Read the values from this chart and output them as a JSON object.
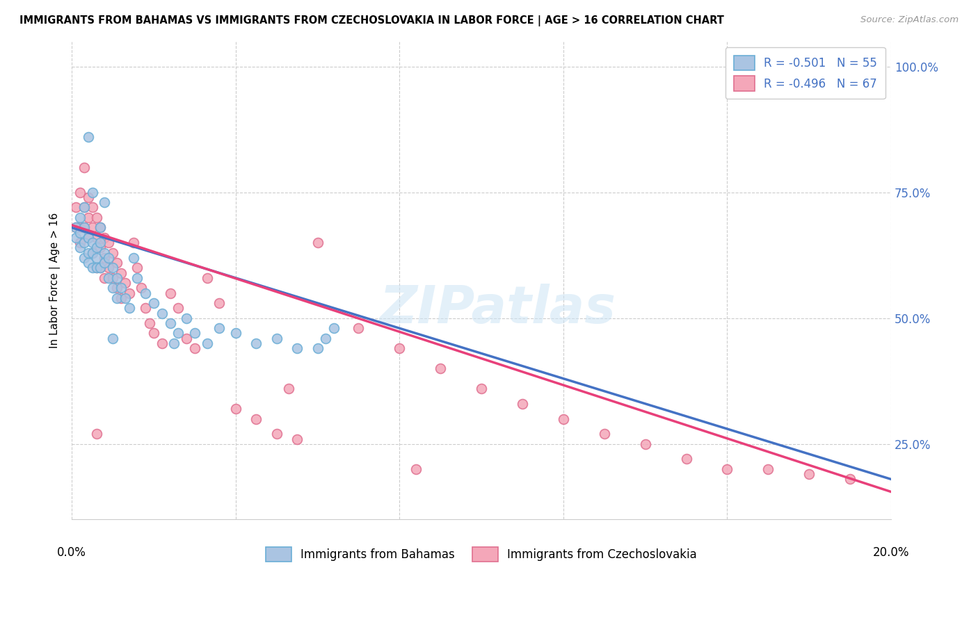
{
  "title": "IMMIGRANTS FROM BAHAMAS VS IMMIGRANTS FROM CZECHOSLOVAKIA IN LABOR FORCE | AGE > 16 CORRELATION CHART",
  "source": "Source: ZipAtlas.com",
  "ylabel": "In Labor Force | Age > 16",
  "xmin": 0.0,
  "xmax": 0.2,
  "ymin": 0.1,
  "ymax": 1.05,
  "bahamas_color": "#aac4e2",
  "bahamas_edge_color": "#6aaed6",
  "czechoslovakia_color": "#f4a7b9",
  "czechoslovakia_edge_color": "#e07090",
  "trend_bahamas_color": "#4472c4",
  "trend_czechoslovakia_color": "#e8407a",
  "legend_label_1": "R = -0.501   N = 55",
  "legend_label_2": "R = -0.496   N = 67",
  "bottom_legend_1": "Immigrants from Bahamas",
  "bottom_legend_2": "Immigrants from Czechoslovakia",
  "watermark": "ZIPatlas",
  "bah_intercept": 0.68,
  "bah_slope": -2.5,
  "czk_intercept": 0.685,
  "czk_slope": -2.65,
  "bahamas_x": [
    0.001,
    0.001,
    0.002,
    0.002,
    0.002,
    0.003,
    0.003,
    0.003,
    0.003,
    0.004,
    0.004,
    0.004,
    0.004,
    0.005,
    0.005,
    0.005,
    0.005,
    0.006,
    0.006,
    0.006,
    0.007,
    0.007,
    0.007,
    0.008,
    0.008,
    0.008,
    0.009,
    0.009,
    0.01,
    0.01,
    0.011,
    0.011,
    0.012,
    0.013,
    0.014,
    0.015,
    0.016,
    0.018,
    0.02,
    0.022,
    0.024,
    0.026,
    0.028,
    0.03,
    0.033,
    0.036,
    0.04,
    0.045,
    0.05,
    0.055,
    0.06,
    0.062,
    0.064,
    0.01,
    0.025
  ],
  "bahamas_y": [
    0.68,
    0.66,
    0.7,
    0.67,
    0.64,
    0.68,
    0.65,
    0.62,
    0.72,
    0.66,
    0.63,
    0.61,
    0.86,
    0.65,
    0.63,
    0.6,
    0.75,
    0.64,
    0.62,
    0.6,
    0.65,
    0.68,
    0.6,
    0.63,
    0.61,
    0.73,
    0.62,
    0.58,
    0.6,
    0.56,
    0.58,
    0.54,
    0.56,
    0.54,
    0.52,
    0.62,
    0.58,
    0.55,
    0.53,
    0.51,
    0.49,
    0.47,
    0.5,
    0.47,
    0.45,
    0.48,
    0.47,
    0.45,
    0.46,
    0.44,
    0.44,
    0.46,
    0.48,
    0.46,
    0.45
  ],
  "czechoslovakia_x": [
    0.001,
    0.001,
    0.002,
    0.002,
    0.002,
    0.003,
    0.003,
    0.003,
    0.004,
    0.004,
    0.004,
    0.005,
    0.005,
    0.005,
    0.006,
    0.006,
    0.006,
    0.007,
    0.007,
    0.007,
    0.008,
    0.008,
    0.008,
    0.009,
    0.009,
    0.01,
    0.01,
    0.011,
    0.011,
    0.012,
    0.012,
    0.013,
    0.014,
    0.015,
    0.016,
    0.017,
    0.018,
    0.019,
    0.02,
    0.022,
    0.024,
    0.026,
    0.028,
    0.03,
    0.033,
    0.036,
    0.04,
    0.045,
    0.05,
    0.055,
    0.06,
    0.07,
    0.08,
    0.09,
    0.1,
    0.11,
    0.12,
    0.13,
    0.14,
    0.15,
    0.16,
    0.17,
    0.18,
    0.19,
    0.053,
    0.084,
    0.006
  ],
  "czechoslovakia_y": [
    0.68,
    0.72,
    0.75,
    0.68,
    0.65,
    0.8,
    0.72,
    0.68,
    0.74,
    0.7,
    0.66,
    0.72,
    0.68,
    0.63,
    0.7,
    0.66,
    0.6,
    0.68,
    0.64,
    0.6,
    0.66,
    0.62,
    0.58,
    0.65,
    0.6,
    0.63,
    0.58,
    0.61,
    0.56,
    0.59,
    0.54,
    0.57,
    0.55,
    0.65,
    0.6,
    0.56,
    0.52,
    0.49,
    0.47,
    0.45,
    0.55,
    0.52,
    0.46,
    0.44,
    0.58,
    0.53,
    0.32,
    0.3,
    0.27,
    0.26,
    0.65,
    0.48,
    0.44,
    0.4,
    0.36,
    0.33,
    0.3,
    0.27,
    0.25,
    0.22,
    0.2,
    0.2,
    0.19,
    0.18,
    0.36,
    0.2,
    0.27
  ]
}
